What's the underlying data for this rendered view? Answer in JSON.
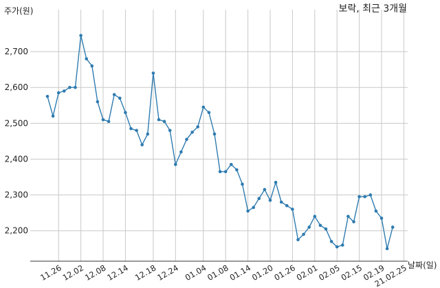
{
  "chart_data": {
    "type": "line",
    "title": "보락, 최근 3개월",
    "ylabel": "주가(원)",
    "xlabel": "날짜(일)",
    "ylim": [
      2115,
      2775
    ],
    "yticks": [
      2200,
      2300,
      2400,
      2500,
      2600,
      2700
    ],
    "ytick_labels": [
      "2,200",
      "2,300",
      "2,400",
      "2,500",
      "2,600",
      "2,700"
    ],
    "xtick_labels": [
      "11.26",
      "12.02",
      "12.08",
      "12.14",
      "12.18",
      "12.24",
      "01.04",
      "01.08",
      "01.14",
      "01.20",
      "01.26",
      "02.01",
      "02.05",
      "02.15",
      "02.19",
      "21.02.25"
    ],
    "xtick_index": [
      2,
      6,
      10,
      14,
      19,
      23,
      28,
      32,
      36,
      40,
      44,
      48,
      52,
      56,
      60,
      64
    ],
    "grid": true,
    "line_color": "#2e7bb0",
    "series": [
      {
        "values": [
          2575,
          2520,
          2585,
          2590,
          2600,
          2600,
          2745,
          2680,
          2660,
          2560,
          2510,
          2505,
          2580,
          2570,
          2530,
          2485,
          2480,
          2440,
          2470,
          2640,
          2510,
          2505,
          2480,
          2385,
          2420,
          2455,
          2475,
          2490,
          2545,
          2530,
          2470,
          2365,
          2365,
          2385,
          2370,
          2330,
          2255,
          2265,
          2290,
          2315,
          2285,
          2335,
          2280,
          2270,
          2260,
          2175,
          2190,
          2210,
          2240,
          2215,
          2205,
          2170,
          2155,
          2160,
          2240,
          2225,
          2295,
          2295,
          2300,
          2255,
          2235,
          2150,
          2210
        ]
      }
    ]
  }
}
